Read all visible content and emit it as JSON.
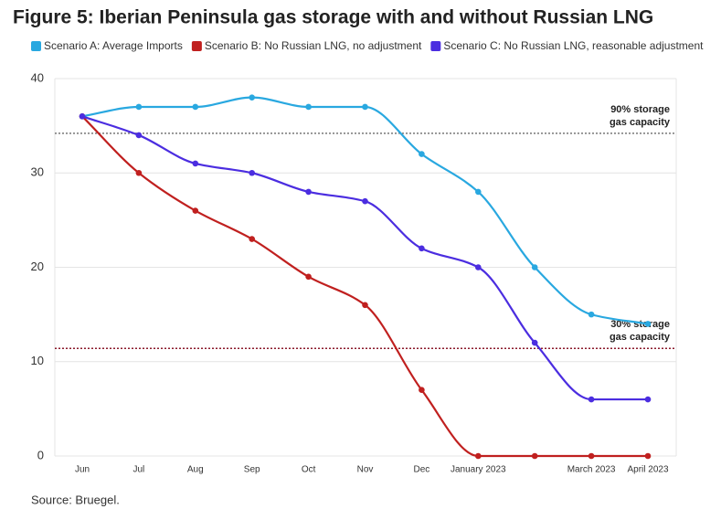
{
  "chart_data": {
    "type": "line",
    "title": "Figure 5: Iberian Peninsula gas storage with and without Russian LNG",
    "source": "Source: Bruegel.",
    "categories": [
      "Jun",
      "Jul",
      "Aug",
      "Sep",
      "Oct",
      "Nov",
      "Dec",
      "January 2023",
      null,
      "March 2023",
      "April 2023"
    ],
    "series": [
      {
        "name": "Scenario A: Average Imports",
        "color": "#29a8e0",
        "values": [
          36,
          37,
          37,
          38,
          37,
          37,
          32,
          28,
          20,
          15,
          14
        ]
      },
      {
        "name": "Scenario B: No Russian LNG, no adjustment",
        "color": "#c0201f",
        "values": [
          36,
          30,
          26,
          23,
          19,
          16,
          7,
          0,
          0,
          0,
          0
        ]
      },
      {
        "name": "Scenario C: No Russian LNG, reasonable adjustment",
        "color": "#4b2de0",
        "values": [
          36,
          34,
          31,
          30,
          28,
          27,
          22,
          20,
          12,
          6,
          6
        ]
      }
    ],
    "reference_lines": [
      {
        "value": 34.2,
        "label_lines": [
          "90% storage",
          "gas capacity"
        ],
        "color": "#777777"
      },
      {
        "value": 11.4,
        "label_lines": [
          "30% storage",
          "gas capacity"
        ],
        "color": "#8b1a2b"
      }
    ],
    "ylim": [
      0,
      40
    ],
    "yticks": [
      0,
      10,
      20,
      30,
      40
    ],
    "grid": true
  }
}
